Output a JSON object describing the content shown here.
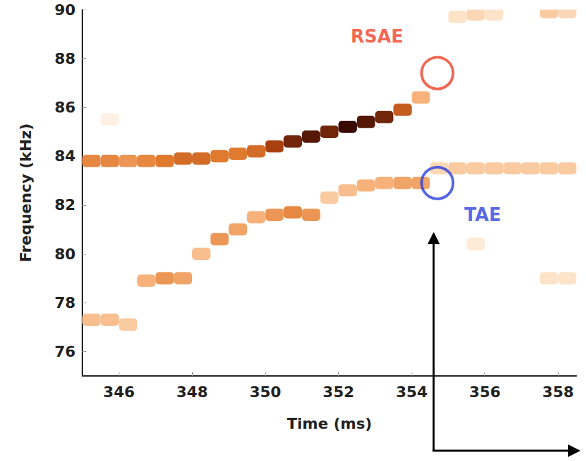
{
  "chart_data": {
    "type": "spectrogram",
    "xlabel": "Time (ms)",
    "ylabel": "Frequency (kHz)",
    "xlim": [
      345,
      358.5
    ],
    "xticks": [
      346,
      348,
      350,
      352,
      354,
      356,
      358
    ],
    "ylim": [
      75,
      90
    ],
    "yticks": [
      76,
      78,
      80,
      82,
      84,
      86,
      88,
      90
    ],
    "grid": false,
    "cell_width": 0.5,
    "cell_height": 0.5,
    "intensity_range": [
      0,
      1
    ],
    "cells": [
      [
        345.25,
        83.8,
        0.55
      ],
      [
        345.75,
        83.8,
        0.55
      ],
      [
        346.25,
        83.8,
        0.5
      ],
      [
        346.75,
        83.8,
        0.55
      ],
      [
        347.25,
        83.8,
        0.6
      ],
      [
        347.75,
        83.9,
        0.65
      ],
      [
        348.25,
        83.9,
        0.65
      ],
      [
        348.75,
        84.0,
        0.6
      ],
      [
        349.25,
        84.1,
        0.6
      ],
      [
        349.75,
        84.2,
        0.65
      ],
      [
        350.25,
        84.4,
        0.8
      ],
      [
        350.75,
        84.6,
        0.9
      ],
      [
        351.25,
        84.8,
        0.95
      ],
      [
        351.75,
        85.0,
        0.9
      ],
      [
        352.25,
        85.2,
        1.0
      ],
      [
        352.75,
        85.4,
        0.95
      ],
      [
        353.25,
        85.6,
        0.9
      ],
      [
        353.75,
        85.9,
        0.7
      ],
      [
        354.25,
        86.4,
        0.4
      ],
      [
        345.25,
        77.3,
        0.35
      ],
      [
        345.75,
        77.3,
        0.35
      ],
      [
        346.25,
        77.1,
        0.3
      ],
      [
        346.75,
        78.9,
        0.4
      ],
      [
        347.25,
        79.0,
        0.5
      ],
      [
        347.75,
        79.0,
        0.45
      ],
      [
        348.25,
        80.0,
        0.35
      ],
      [
        348.75,
        80.6,
        0.5
      ],
      [
        349.25,
        81.0,
        0.45
      ],
      [
        349.75,
        81.5,
        0.4
      ],
      [
        350.25,
        81.6,
        0.5
      ],
      [
        350.75,
        81.7,
        0.55
      ],
      [
        351.25,
        81.6,
        0.5
      ],
      [
        351.75,
        82.3,
        0.3
      ],
      [
        352.25,
        82.6,
        0.35
      ],
      [
        352.75,
        82.8,
        0.4
      ],
      [
        353.25,
        82.9,
        0.4
      ],
      [
        353.75,
        82.9,
        0.45
      ],
      [
        354.25,
        82.9,
        0.45
      ],
      [
        354.75,
        83.5,
        0.25
      ],
      [
        355.25,
        83.5,
        0.3
      ],
      [
        355.75,
        83.5,
        0.3
      ],
      [
        356.25,
        83.5,
        0.3
      ],
      [
        356.75,
        83.5,
        0.3
      ],
      [
        357.25,
        83.5,
        0.3
      ],
      [
        357.75,
        83.5,
        0.3
      ],
      [
        358.25,
        83.5,
        0.3
      ],
      [
        355.25,
        89.7,
        0.2
      ],
      [
        355.75,
        89.8,
        0.25
      ],
      [
        356.25,
        89.8,
        0.2
      ],
      [
        357.75,
        89.9,
        0.3
      ],
      [
        358.25,
        89.9,
        0.25
      ],
      [
        357.75,
        79.0,
        0.2
      ],
      [
        358.25,
        79.0,
        0.2
      ],
      [
        355.75,
        80.4,
        0.15
      ],
      [
        345.75,
        85.5,
        0.1
      ]
    ],
    "annotations": [
      {
        "text": "RSAE",
        "x": 354.7,
        "y": 87.4,
        "color": "#ee4027",
        "position": "upper left"
      },
      {
        "text": "TAE",
        "x": 354.7,
        "y": 82.9,
        "color": "#2b3fe0",
        "position": "lower right"
      }
    ],
    "arrow": {
      "x": 354.6,
      "y": 80.9
    }
  }
}
